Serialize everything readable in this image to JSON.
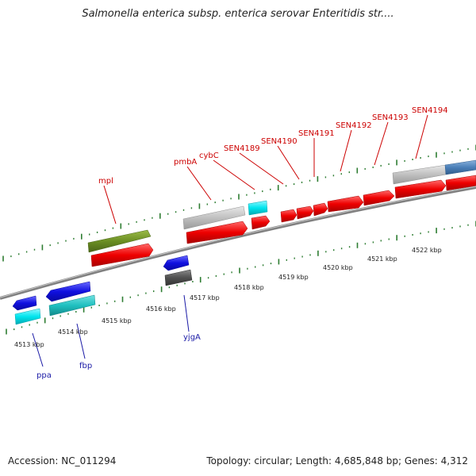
{
  "title": "Salmonella enterica subsp. enterica serovar Enteritidis str....",
  "footer": {
    "accession": "Accession: NC_011294",
    "summary": "Topology: circular; Length: 4,685,848 bp; Genes: 4,312"
  },
  "colors": {
    "backbone": "#808080",
    "tick": "#2e7d32",
    "forward_label": "#cc0000",
    "reverse_label": "#1a1aa6",
    "red": "#ee0000",
    "olive": "#6b8e23",
    "light_gray": "#c0c0c0",
    "cyan": "#00e5ee",
    "blue": "#1010e0",
    "dark_gray": "#505050",
    "teal": "#20c0c0",
    "steel_blue": "#4a7fb8"
  },
  "scale_labels": [
    "4513 kbp",
    "4514 kbp",
    "4515 kbp",
    "4516 kbp",
    "4517 kbp",
    "4518 kbp",
    "4519 kbp",
    "4520 kbp",
    "4521 kbp",
    "4522 kbp"
  ],
  "forward_labels": [
    "mpl",
    "pmbA",
    "cybC",
    "SEN4189",
    "SEN4190",
    "SEN4191",
    "SEN4192",
    "SEN4193",
    "SEN4194"
  ],
  "reverse_labels": [
    "ppa",
    "fbp",
    "yjgA"
  ]
}
